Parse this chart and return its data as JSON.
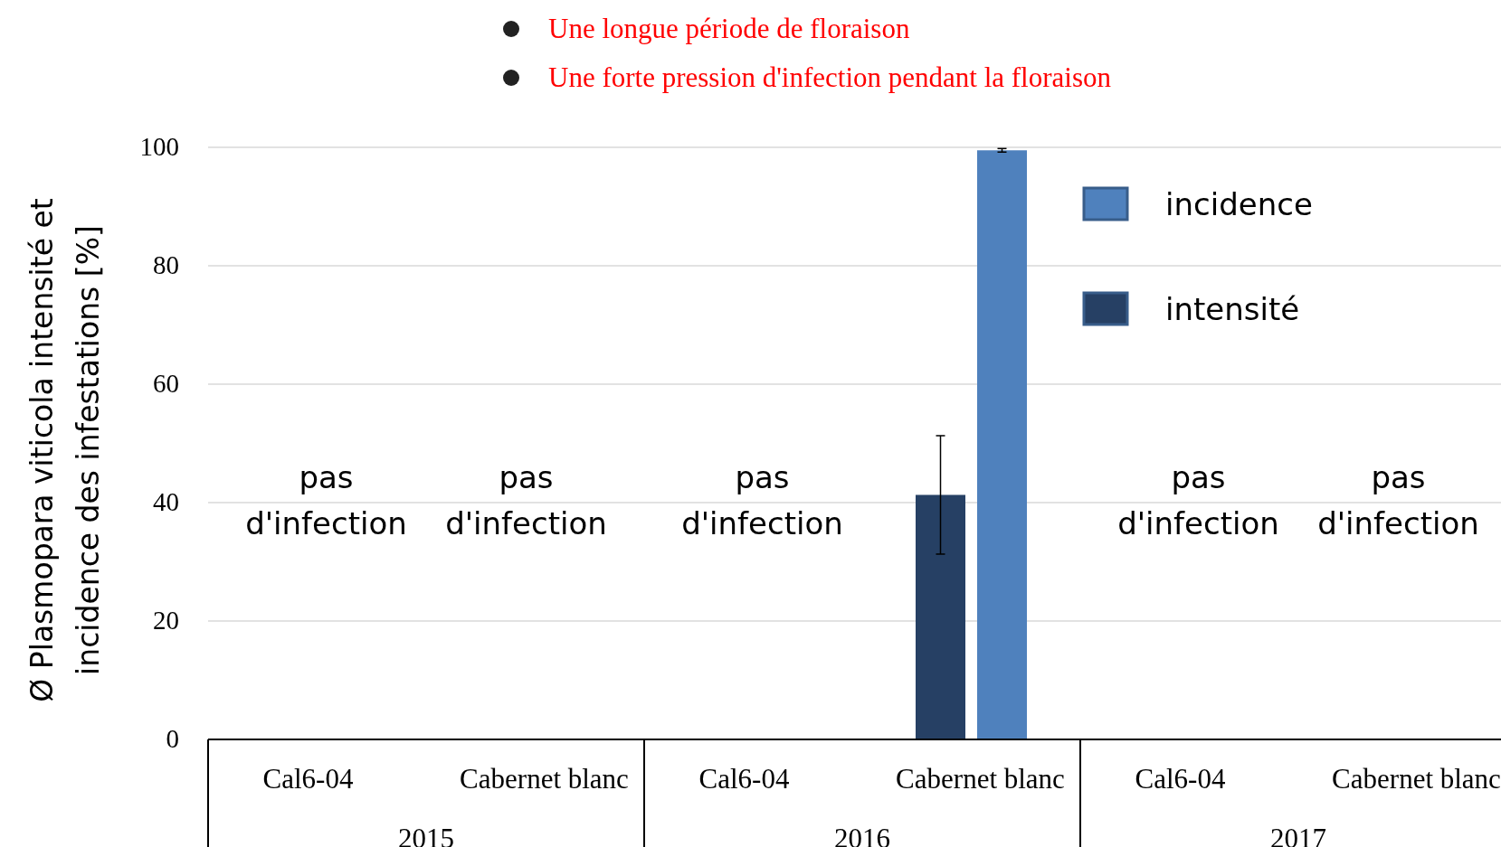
{
  "chart_data": {
    "type": "bar",
    "title": "Une longue période de floraison",
    "subtitle": "Une forte pression d'infection pendant la floraison",
    "ylabel": "Ø Plasmopara viticola intensité et incidence des infestations [%]",
    "categories": [
      "Cal6-04",
      "Cabernet blanc",
      "Cal6-04",
      "Cabernet blanc",
      "Cal6-04",
      "Cabernet blanc"
    ],
    "series": [
      {
        "name": "intensité",
        "color": "#264064",
        "values": [
          0,
          0,
          0,
          41.3,
          0,
          0
        ],
        "errors": [
          null,
          null,
          null,
          10,
          null,
          null
        ]
      },
      {
        "name": "incidence",
        "color": "#4f81bd",
        "values": [
          0,
          0,
          0,
          99.5,
          0,
          0
        ],
        "errors": [
          null,
          null,
          null,
          0.3,
          null,
          null
        ]
      }
    ],
    "annotations": [
      "2015",
      "2016",
      "2017",
      "pas d'infection",
      "pas d'infection",
      "pas d'infection",
      "pas d'infection",
      "pas d'infection"
    ],
    "ylim": [
      0,
      100
    ],
    "yticks": [
      0,
      20,
      40,
      60,
      80,
      100
    ],
    "grid": "y",
    "legend": "top right"
  }
}
